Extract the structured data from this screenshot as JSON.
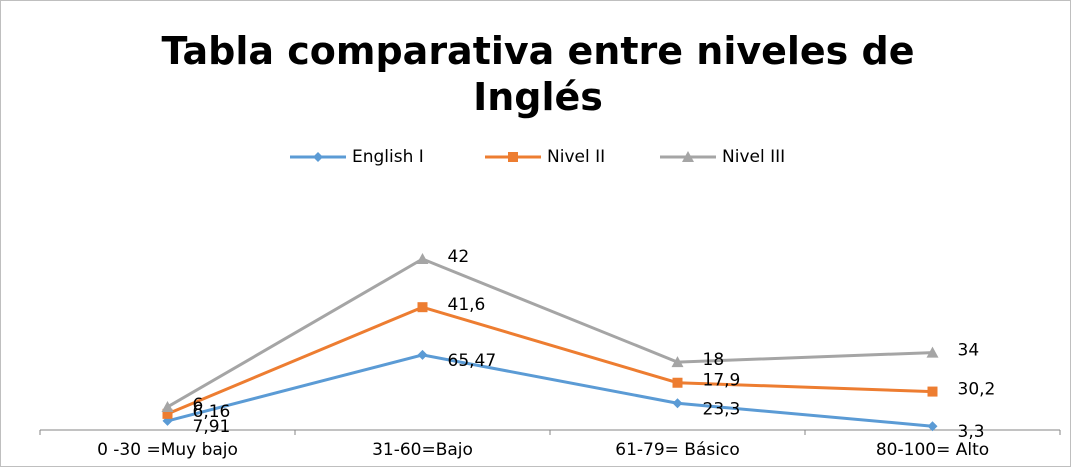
{
  "chart_data": {
    "type": "line",
    "stacked": true,
    "title": "Tabla comparativa entre niveles de Inglés",
    "categories": [
      "0 -30 =Muy bajo",
      "31-60=Bajo",
      "61-79= Básico",
      "80-100= Alto"
    ],
    "series": [
      {
        "name": "English I",
        "color": "#5b9bd5",
        "marker": "diamond",
        "values": [
          7.91,
          65.47,
          23.3,
          3.3
        ],
        "value_labels": [
          "7,91",
          "65,47",
          "23,3",
          "3,3"
        ]
      },
      {
        "name": "Nivel II",
        "color": "#ed7d31",
        "marker": "square",
        "values": [
          6.16,
          41.6,
          17.9,
          30.2
        ],
        "value_labels": [
          "6,16",
          "41,6",
          "17,9",
          "30,2"
        ]
      },
      {
        "name": "Nivel III",
        "color": "#a5a5a5",
        "marker": "triangle",
        "values": [
          6,
          42,
          18,
          34
        ],
        "value_labels": [
          "6",
          "42",
          "18",
          "34"
        ]
      }
    ],
    "ylim": [
      0,
      170
    ],
    "legend": "top"
  }
}
